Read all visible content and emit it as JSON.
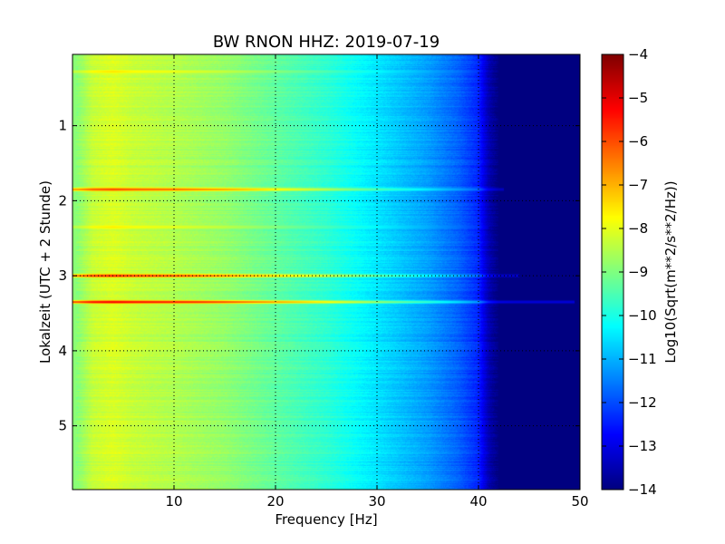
{
  "chart_data": {
    "type": "heatmap",
    "title": "BW RNON HHZ: 2019-07-19",
    "xlabel": "Frequency [Hz]",
    "ylabel": "Lokalzeit (UTC + 2 Stunde)",
    "colorbar_label": "Log10(Sqrt(m**2/s**2/Hz))",
    "xlim": [
      0,
      50
    ],
    "ylim": [
      5.85,
      0.05
    ],
    "y_inverted": true,
    "xticks": [
      10,
      20,
      30,
      40,
      50
    ],
    "xtick_labels": [
      "10",
      "20",
      "30",
      "40",
      "50"
    ],
    "yticks": [
      1,
      2,
      3,
      4,
      5
    ],
    "ytick_labels": [
      "1",
      "2",
      "3",
      "4",
      "5"
    ],
    "grid": true,
    "colormap": "jet",
    "clim": [
      -14,
      -4
    ],
    "colorbar_ticks": [
      -4,
      -5,
      -6,
      -7,
      -8,
      -9,
      -10,
      -11,
      -12,
      -13,
      -14
    ],
    "colorbar_tick_labels": [
      "−4",
      "−5",
      "−6",
      "−7",
      "−8",
      "−9",
      "−10",
      "−11",
      "−12",
      "−13",
      "−14"
    ],
    "baseline_profile": {
      "frequency_hz": [
        0.5,
        2,
        4,
        6,
        10,
        15,
        20,
        25,
        30,
        35,
        38,
        40,
        41,
        42,
        50
      ],
      "log_psd": [
        -8.9,
        -8.3,
        -8.1,
        -8.3,
        -8.5,
        -8.8,
        -9.3,
        -9.8,
        -10.5,
        -11.2,
        -11.8,
        -12.4,
        -13.5,
        -14,
        -14
      ]
    },
    "events": [
      {
        "time_h": 0.28,
        "boost": 0.7,
        "fmax": 40
      },
      {
        "time_h": 1.85,
        "boost": 2.6,
        "fmax": 42.5
      },
      {
        "time_h": 2.35,
        "boost": 0.6,
        "fmax": 41
      },
      {
        "time_h": 3.0,
        "boost": 3.0,
        "fmax": 44
      },
      {
        "time_h": 3.35,
        "boost": 3.5,
        "fmax": 49.5
      }
    ]
  }
}
